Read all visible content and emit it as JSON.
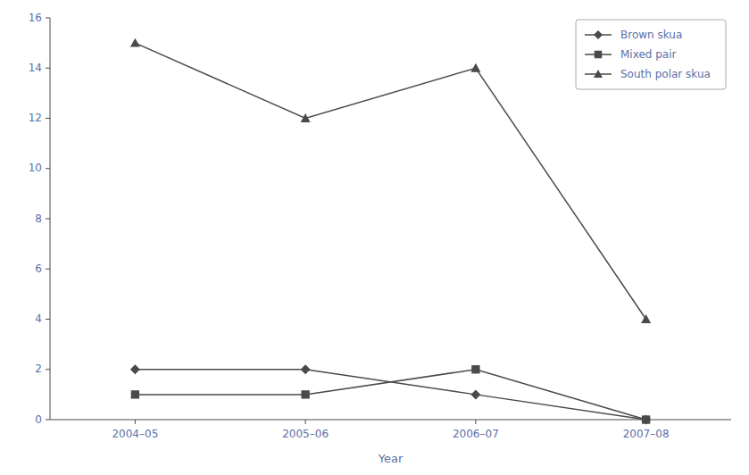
{
  "chart_data": {
    "type": "line",
    "xlabel": "Year",
    "categories": [
      "2004–05",
      "2005–06",
      "2006–07",
      "2007–08"
    ],
    "series": [
      {
        "name": "Brown skua",
        "color": "#4a4a4a",
        "marker": "diamond",
        "values": [
          2,
          2,
          1,
          0
        ]
      },
      {
        "name": "Mixed pair",
        "color": "#4a4a4a",
        "marker": "square",
        "values": [
          1,
          1,
          2,
          0
        ]
      },
      {
        "name": "South polar skua",
        "color": "#4a4a4a",
        "marker": "triangle",
        "values": [
          15,
          12,
          14,
          4
        ]
      }
    ],
    "ylim": [
      0,
      16
    ],
    "yticks": [
      0,
      2,
      4,
      6,
      8,
      10,
      12,
      14,
      16
    ],
    "grid": false,
    "legend": "top-right"
  }
}
